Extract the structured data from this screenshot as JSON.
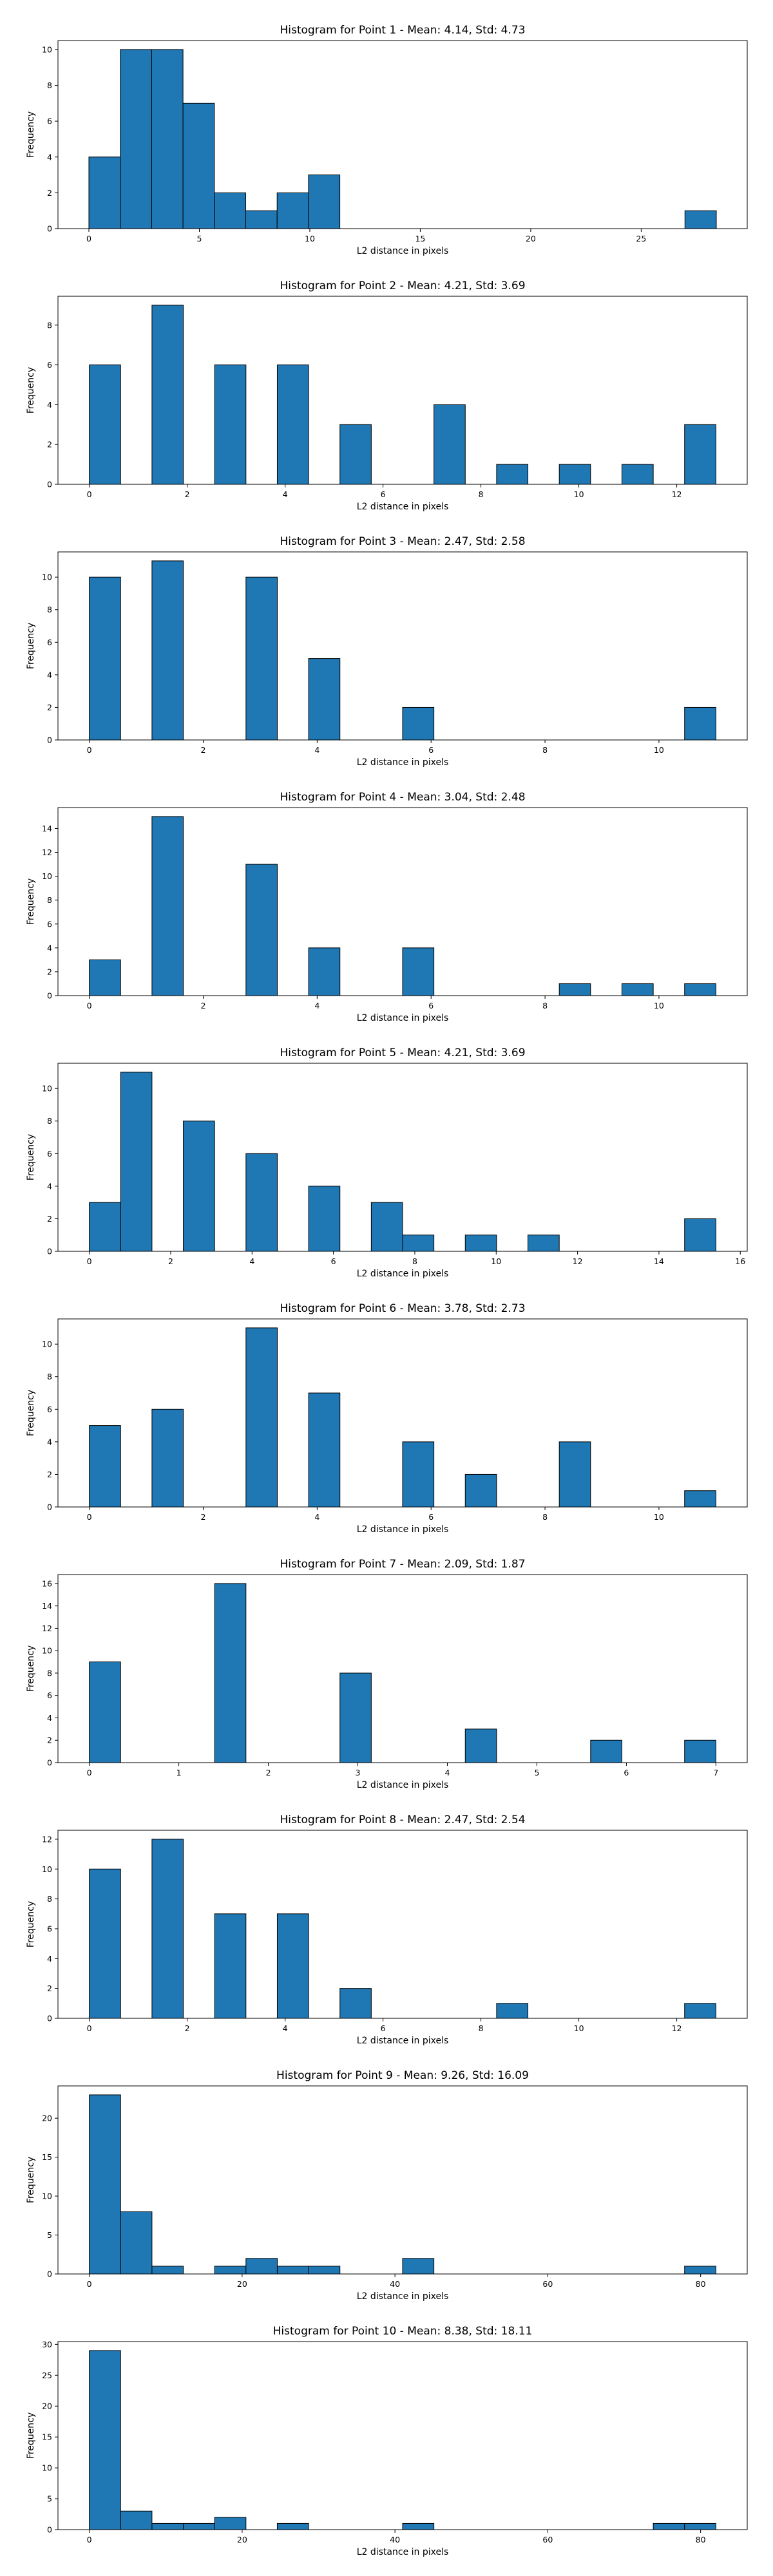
{
  "chart_data": [
    {
      "type": "bar",
      "title": "Histogram for Point 1 - Mean: 4.14, Std: 4.73",
      "xlabel": "L2 distance in pixels",
      "ylabel": "Frequency",
      "xlim": [
        -1.4,
        29.8
      ],
      "ylim": [
        0,
        10.5
      ],
      "xticks": [
        0,
        5,
        10,
        15,
        20,
        25
      ],
      "yticks": [
        0,
        2,
        4,
        6,
        8,
        10
      ],
      "bin_width": 1.42,
      "bins": [
        {
          "x": 0.0,
          "count": 4
        },
        {
          "x": 1.42,
          "count": 10
        },
        {
          "x": 2.84,
          "count": 10
        },
        {
          "x": 4.26,
          "count": 7
        },
        {
          "x": 5.68,
          "count": 2
        },
        {
          "x": 7.1,
          "count": 1
        },
        {
          "x": 8.52,
          "count": 2
        },
        {
          "x": 9.94,
          "count": 3
        },
        {
          "x": 26.98,
          "count": 1
        }
      ],
      "color": "#1f77b4",
      "edge_color": "#000000",
      "grid": false
    },
    {
      "type": "bar",
      "title": "Histogram for Point 2 - Mean: 4.21, Std: 3.69",
      "xlabel": "L2 distance in pixels",
      "ylabel": "Frequency",
      "xlim": [
        -0.64,
        13.44
      ],
      "ylim": [
        0,
        9.45
      ],
      "xticks": [
        0,
        2,
        4,
        6,
        8,
        10,
        12
      ],
      "yticks": [
        0,
        2,
        4,
        6,
        8
      ],
      "bin_width": 0.64,
      "bins": [
        {
          "x": 0.0,
          "count": 6
        },
        {
          "x": 1.28,
          "count": 9
        },
        {
          "x": 2.56,
          "count": 6
        },
        {
          "x": 3.84,
          "count": 6
        },
        {
          "x": 5.12,
          "count": 3
        },
        {
          "x": 7.04,
          "count": 4
        },
        {
          "x": 8.32,
          "count": 1
        },
        {
          "x": 9.6,
          "count": 1
        },
        {
          "x": 10.88,
          "count": 1
        },
        {
          "x": 12.16,
          "count": 3
        }
      ],
      "color": "#1f77b4",
      "edge_color": "#000000",
      "grid": false
    },
    {
      "type": "bar",
      "title": "Histogram for Point 3 - Mean: 2.47, Std: 2.58",
      "xlabel": "L2 distance in pixels",
      "ylabel": "Frequency",
      "xlim": [
        -0.55,
        11.55
      ],
      "ylim": [
        0,
        11.55
      ],
      "xticks": [
        0,
        2,
        4,
        6,
        8,
        10
      ],
      "yticks": [
        0,
        2,
        4,
        6,
        8,
        10
      ],
      "bin_width": 0.55,
      "bins": [
        {
          "x": 0.0,
          "count": 10
        },
        {
          "x": 1.1,
          "count": 11
        },
        {
          "x": 2.75,
          "count": 10
        },
        {
          "x": 3.85,
          "count": 5
        },
        {
          "x": 5.5,
          "count": 2
        },
        {
          "x": 10.45,
          "count": 2
        }
      ],
      "color": "#1f77b4",
      "edge_color": "#000000",
      "grid": false
    },
    {
      "type": "bar",
      "title": "Histogram for Point 4 - Mean: 3.04, Std: 2.48",
      "xlabel": "L2 distance in pixels",
      "ylabel": "Frequency",
      "xlim": [
        -0.55,
        11.55
      ],
      "ylim": [
        0,
        15.75
      ],
      "xticks": [
        0,
        2,
        4,
        6,
        8,
        10
      ],
      "yticks": [
        0,
        2,
        4,
        6,
        8,
        10,
        12,
        14
      ],
      "bin_width": 0.55,
      "bins": [
        {
          "x": 0.0,
          "count": 3
        },
        {
          "x": 1.1,
          "count": 15
        },
        {
          "x": 2.75,
          "count": 11
        },
        {
          "x": 3.85,
          "count": 4
        },
        {
          "x": 5.5,
          "count": 4
        },
        {
          "x": 8.25,
          "count": 1
        },
        {
          "x": 9.35,
          "count": 1
        },
        {
          "x": 10.45,
          "count": 1
        }
      ],
      "color": "#1f77b4",
      "edge_color": "#000000",
      "grid": false
    },
    {
      "type": "bar",
      "title": "Histogram for Point 5 - Mean: 4.21, Std: 3.69",
      "xlabel": "L2 distance in pixels",
      "ylabel": "Frequency",
      "xlim": [
        -0.77,
        16.17
      ],
      "ylim": [
        0,
        11.55
      ],
      "xticks": [
        0,
        2,
        4,
        6,
        8,
        10,
        12,
        14,
        16
      ],
      "yticks": [
        0,
        2,
        4,
        6,
        8,
        10
      ],
      "bin_width": 0.77,
      "bins": [
        {
          "x": 0.0,
          "count": 3
        },
        {
          "x": 0.77,
          "count": 11
        },
        {
          "x": 2.31,
          "count": 8
        },
        {
          "x": 3.85,
          "count": 6
        },
        {
          "x": 5.39,
          "count": 4
        },
        {
          "x": 6.93,
          "count": 3
        },
        {
          "x": 7.7,
          "count": 1
        },
        {
          "x": 9.24,
          "count": 1
        },
        {
          "x": 10.78,
          "count": 1
        },
        {
          "x": 14.63,
          "count": 2
        }
      ],
      "color": "#1f77b4",
      "edge_color": "#000000",
      "grid": false
    },
    {
      "type": "bar",
      "title": "Histogram for Point 6 - Mean: 3.78, Std: 2.73",
      "xlabel": "L2 distance in pixels",
      "ylabel": "Frequency",
      "xlim": [
        -0.55,
        11.55
      ],
      "ylim": [
        0,
        11.55
      ],
      "xticks": [
        0,
        2,
        4,
        6,
        8,
        10
      ],
      "yticks": [
        0,
        2,
        4,
        6,
        8,
        10
      ],
      "bin_width": 0.55,
      "bins": [
        {
          "x": 0.0,
          "count": 5
        },
        {
          "x": 1.1,
          "count": 6
        },
        {
          "x": 2.75,
          "count": 11
        },
        {
          "x": 3.85,
          "count": 7
        },
        {
          "x": 5.5,
          "count": 4
        },
        {
          "x": 6.6,
          "count": 2
        },
        {
          "x": 8.25,
          "count": 4
        },
        {
          "x": 10.45,
          "count": 1
        }
      ],
      "color": "#1f77b4",
      "edge_color": "#000000",
      "grid": false
    },
    {
      "type": "bar",
      "title": "Histogram for Point 7 - Mean: 2.09, Std: 1.87",
      "xlabel": "L2 distance in pixels",
      "ylabel": "Frequency",
      "xlim": [
        -0.35,
        7.35
      ],
      "ylim": [
        0,
        16.8
      ],
      "xticks": [
        0,
        1,
        2,
        3,
        4,
        5,
        6,
        7
      ],
      "yticks": [
        0,
        2,
        4,
        6,
        8,
        10,
        12,
        14,
        16
      ],
      "bin_width": 0.35,
      "bins": [
        {
          "x": 0.0,
          "count": 9
        },
        {
          "x": 1.4,
          "count": 16
        },
        {
          "x": 2.8,
          "count": 8
        },
        {
          "x": 4.2,
          "count": 3
        },
        {
          "x": 5.6,
          "count": 2
        },
        {
          "x": 6.65,
          "count": 2
        }
      ],
      "color": "#1f77b4",
      "edge_color": "#000000",
      "grid": false
    },
    {
      "type": "bar",
      "title": "Histogram for Point 8 - Mean: 2.47, Std: 2.54",
      "xlabel": "L2 distance in pixels",
      "ylabel": "Frequency",
      "xlim": [
        -0.64,
        13.44
      ],
      "ylim": [
        0,
        12.6
      ],
      "xticks": [
        0,
        2,
        4,
        6,
        8,
        10,
        12
      ],
      "yticks": [
        0,
        2,
        4,
        6,
        8,
        10,
        12
      ],
      "bin_width": 0.64,
      "bins": [
        {
          "x": 0.0,
          "count": 10
        },
        {
          "x": 1.28,
          "count": 12
        },
        {
          "x": 2.56,
          "count": 7
        },
        {
          "x": 3.84,
          "count": 7
        },
        {
          "x": 5.12,
          "count": 2
        },
        {
          "x": 8.32,
          "count": 1
        },
        {
          "x": 12.16,
          "count": 1
        }
      ],
      "color": "#1f77b4",
      "edge_color": "#000000",
      "grid": false
    },
    {
      "type": "bar",
      "title": "Histogram for Point 9 - Mean: 9.26, Std: 16.09",
      "xlabel": "L2 distance in pixels",
      "ylabel": "Frequency",
      "xlim": [
        -4.1,
        86.1
      ],
      "ylim": [
        0,
        24.15
      ],
      "xticks": [
        0,
        20,
        40,
        60,
        80
      ],
      "yticks": [
        0,
        5,
        10,
        15,
        20
      ],
      "bin_width": 4.1,
      "bins": [
        {
          "x": 0.0,
          "count": 23
        },
        {
          "x": 4.1,
          "count": 8
        },
        {
          "x": 8.2,
          "count": 1
        },
        {
          "x": 16.4,
          "count": 1
        },
        {
          "x": 20.5,
          "count": 2
        },
        {
          "x": 24.6,
          "count": 1
        },
        {
          "x": 28.7,
          "count": 1
        },
        {
          "x": 41.0,
          "count": 2
        },
        {
          "x": 77.9,
          "count": 1
        }
      ],
      "color": "#1f77b4",
      "edge_color": "#000000",
      "grid": false
    },
    {
      "type": "bar",
      "title": "Histogram for Point 10 - Mean: 8.38, Std: 18.11",
      "xlabel": "L2 distance in pixels",
      "ylabel": "Frequency",
      "xlim": [
        -4.1,
        86.1
      ],
      "ylim": [
        0,
        30.45
      ],
      "xticks": [
        0,
        20,
        40,
        60,
        80
      ],
      "yticks": [
        0,
        5,
        10,
        15,
        20,
        25,
        30
      ],
      "bin_width": 4.1,
      "bins": [
        {
          "x": 0.0,
          "count": 29
        },
        {
          "x": 4.1,
          "count": 3
        },
        {
          "x": 8.2,
          "count": 1
        },
        {
          "x": 12.3,
          "count": 1
        },
        {
          "x": 16.4,
          "count": 2
        },
        {
          "x": 24.6,
          "count": 1
        },
        {
          "x": 41.0,
          "count": 1
        },
        {
          "x": 73.8,
          "count": 1
        },
        {
          "x": 77.9,
          "count": 1
        }
      ],
      "color": "#1f77b4",
      "edge_color": "#000000",
      "grid": false
    }
  ]
}
